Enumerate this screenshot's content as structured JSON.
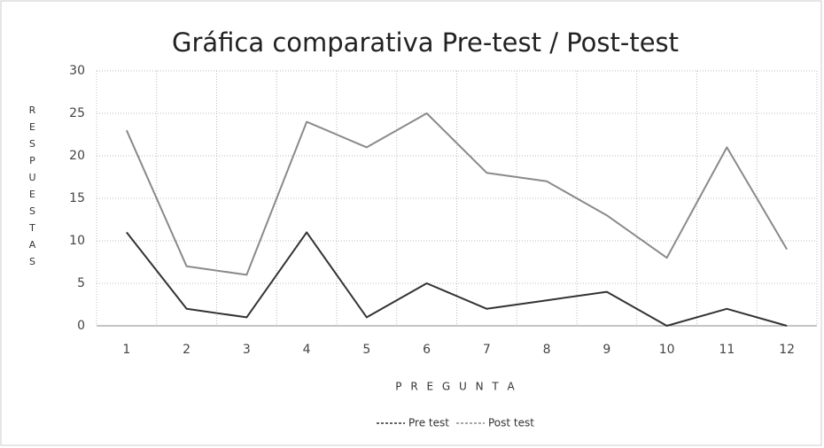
{
  "chart_data": {
    "type": "line",
    "title": "Gráfica comparativa Pre-test / Post-test",
    "x_label": "P R E G U N T A",
    "y_label": "RESPUESTAS",
    "categories": [
      "1",
      "2",
      "3",
      "4",
      "5",
      "6",
      "7",
      "8",
      "9",
      "10",
      "11",
      "12"
    ],
    "series": [
      {
        "name": "Pre test",
        "color": "#333333",
        "values": [
          11,
          2,
          1,
          11,
          1,
          5,
          2,
          3,
          4,
          0,
          2,
          0
        ]
      },
      {
        "name": "Post test",
        "color": "#8a8a8a",
        "values": [
          23,
          7,
          6,
          24,
          21,
          25,
          18,
          17,
          13,
          8,
          21,
          9
        ]
      }
    ],
    "ylim": [
      0,
      30
    ],
    "yticks": [
      0,
      5,
      10,
      15,
      20,
      25,
      30
    ],
    "grid": true,
    "legend": "bottom"
  }
}
